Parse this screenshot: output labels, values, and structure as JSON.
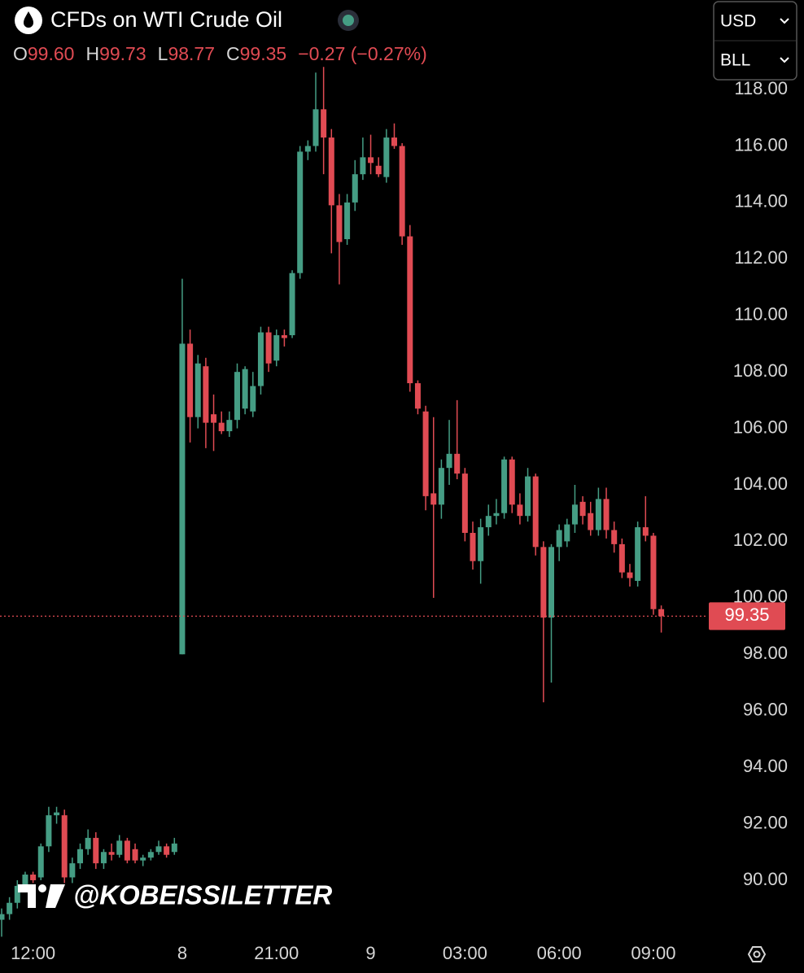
{
  "chart_data": {
    "type": "candlestick",
    "title": "CFDs on WTI Crude Oil",
    "ohlc_header": [
      {
        "label": "O",
        "value": "99.60"
      },
      {
        "label": "H",
        "value": "99.73"
      },
      {
        "label": "L",
        "value": "98.77"
      },
      {
        "label": "C",
        "value": "99.35"
      }
    ],
    "change": "−0.27 (−0.27%)",
    "currency": "USD",
    "unit": "BLL",
    "watermark": "@KOBEISSILETTER",
    "up_color": "#459d84",
    "down_color": "#e04b53",
    "categories": [
      null,
      null,
      null,
      null,
      "12:00",
      null,
      null,
      null,
      null,
      null,
      null,
      null,
      null,
      null,
      null,
      null,
      null,
      null,
      null,
      null,
      null,
      null,
      null,
      "8",
      null,
      null,
      null,
      null,
      null,
      null,
      null,
      null,
      null,
      null,
      null,
      "21:00",
      null,
      null,
      null,
      null,
      null,
      null,
      null,
      null,
      null,
      null,
      null,
      "9",
      null,
      null,
      null,
      null,
      null,
      null,
      null,
      null,
      null,
      null,
      null,
      "03:00",
      null,
      null,
      null,
      null,
      null,
      null,
      null,
      null,
      null,
      null,
      null,
      "06:00",
      null,
      null,
      null,
      null,
      null,
      null,
      null,
      null,
      null,
      null,
      null,
      "09:00",
      null
    ],
    "open": [
      88.6,
      88.8,
      89.2,
      89.8,
      90.2,
      90.1,
      91.2,
      92.3,
      92.3,
      90.1,
      90.6,
      91.1,
      91.5,
      90.6,
      91.0,
      90.9,
      91.4,
      91.1,
      90.7,
      90.8,
      91.0,
      91.2,
      91.0,
      98.0,
      109.0,
      106.4,
      108.2,
      106.5,
      106.2,
      105.9,
      106.3,
      106.7,
      106.6,
      107.5,
      109.4,
      108.4,
      109.3,
      109.3,
      111.5,
      115.8,
      116.0,
      117.3,
      116.3,
      113.9,
      112.7,
      114.0,
      115.0,
      115.6,
      115.3,
      114.9,
      116.3,
      116.0,
      112.8,
      107.6,
      106.6,
      103.7,
      103.3,
      104.6,
      105.1,
      104.4,
      102.3,
      101.3,
      102.5,
      102.9,
      103.0,
      104.9,
      103.3,
      102.9,
      104.3,
      101.8,
      99.3,
      101.8,
      102.0,
      102.6,
      103.4,
      103.0,
      102.4,
      103.5,
      102.4,
      101.9,
      100.9,
      100.6,
      102.5,
      102.2,
      99.6
    ],
    "high": [
      89.0,
      89.4,
      90.0,
      90.3,
      90.3,
      91.3,
      92.6,
      92.6,
      92.5,
      90.8,
      91.3,
      91.8,
      91.7,
      91.1,
      91.3,
      91.6,
      91.5,
      91.3,
      90.9,
      91.1,
      91.4,
      91.3,
      91.5,
      111.3,
      109.5,
      108.6,
      108.5,
      107.2,
      106.6,
      106.6,
      108.3,
      108.2,
      108.0,
      109.6,
      109.6,
      109.5,
      109.5,
      111.6,
      116.0,
      116.2,
      118.6,
      118.8,
      116.6,
      114.3,
      114.3,
      115.5,
      116.3,
      116.4,
      115.6,
      116.6,
      116.8,
      116.1,
      113.2,
      107.7,
      106.8,
      106.4,
      104.9,
      106.3,
      107.0,
      104.6,
      102.7,
      102.8,
      103.3,
      103.5,
      105.0,
      105.0,
      103.7,
      104.6,
      104.4,
      102.0,
      101.9,
      102.6,
      102.8,
      104.0,
      103.6,
      103.4,
      103.9,
      103.9,
      102.7,
      102.1,
      101.2,
      102.7,
      103.6,
      102.3,
      99.73
    ],
    "low": [
      88.0,
      88.6,
      89.0,
      89.6,
      89.9,
      90.0,
      91.0,
      92.0,
      89.9,
      89.9,
      90.4,
      90.9,
      90.4,
      90.4,
      90.7,
      90.8,
      90.6,
      90.6,
      90.5,
      90.7,
      90.9,
      90.8,
      90.9,
      98.0,
      105.5,
      106.0,
      105.3,
      105.2,
      105.8,
      105.7,
      106.0,
      106.5,
      106.4,
      107.2,
      108.0,
      108.2,
      108.9,
      109.2,
      111.3,
      115.5,
      115.8,
      115.0,
      112.2,
      111.1,
      112.5,
      113.7,
      114.8,
      115.0,
      114.9,
      114.7,
      115.9,
      112.5,
      107.3,
      106.5,
      103.1,
      100.0,
      102.8,
      104.0,
      104.2,
      102.0,
      101.0,
      100.5,
      102.2,
      102.6,
      102.8,
      103.0,
      102.6,
      102.7,
      101.5,
      96.3,
      97.0,
      101.3,
      101.8,
      102.3,
      102.6,
      102.2,
      102.2,
      102.1,
      101.6,
      100.7,
      100.4,
      100.4,
      102.0,
      99.4,
      98.77
    ],
    "close": [
      88.8,
      89.2,
      89.8,
      90.2,
      90.0,
      91.2,
      92.3,
      92.4,
      90.1,
      90.6,
      91.1,
      91.5,
      90.6,
      91.0,
      90.9,
      91.4,
      90.7,
      90.7,
      90.8,
      91.0,
      91.2,
      90.9,
      91.3,
      109.0,
      106.4,
      108.3,
      106.2,
      106.2,
      105.9,
      106.3,
      108.0,
      108.1,
      107.5,
      109.4,
      108.3,
      109.3,
      109.2,
      111.5,
      115.8,
      116.0,
      117.3,
      116.3,
      113.9,
      112.6,
      114.0,
      115.0,
      115.6,
      115.4,
      115.0,
      116.3,
      116.0,
      112.8,
      107.6,
      106.7,
      103.6,
      103.3,
      104.6,
      105.1,
      104.4,
      102.3,
      101.3,
      102.5,
      102.9,
      103.0,
      104.9,
      103.3,
      102.9,
      104.3,
      101.8,
      99.3,
      101.8,
      102.4,
      102.6,
      103.3,
      102.9,
      102.4,
      103.5,
      102.4,
      101.9,
      100.9,
      100.7,
      102.5,
      102.2,
      99.6,
      99.35
    ],
    "last_price": 99.35,
    "ylim": [
      88.04,
      121.17
    ],
    "yticks": [
      {
        "value": 90,
        "label": "90.00"
      },
      {
        "value": 92,
        "label": "92.00"
      },
      {
        "value": 94,
        "label": "94.00"
      },
      {
        "value": 96,
        "label": "96.00"
      },
      {
        "value": 98,
        "label": "98.00"
      },
      {
        "value": 100,
        "label": "100.00"
      },
      {
        "value": 102,
        "label": "102.00"
      },
      {
        "value": 104,
        "label": "104.00"
      },
      {
        "value": 106,
        "label": "106.00"
      },
      {
        "value": 108,
        "label": "108.00"
      },
      {
        "value": 110,
        "label": "110.00"
      },
      {
        "value": 112,
        "label": "112.00"
      },
      {
        "value": 114,
        "label": "114.00"
      },
      {
        "value": 116,
        "label": "116.00"
      },
      {
        "value": 118,
        "label": "118.00"
      }
    ]
  }
}
